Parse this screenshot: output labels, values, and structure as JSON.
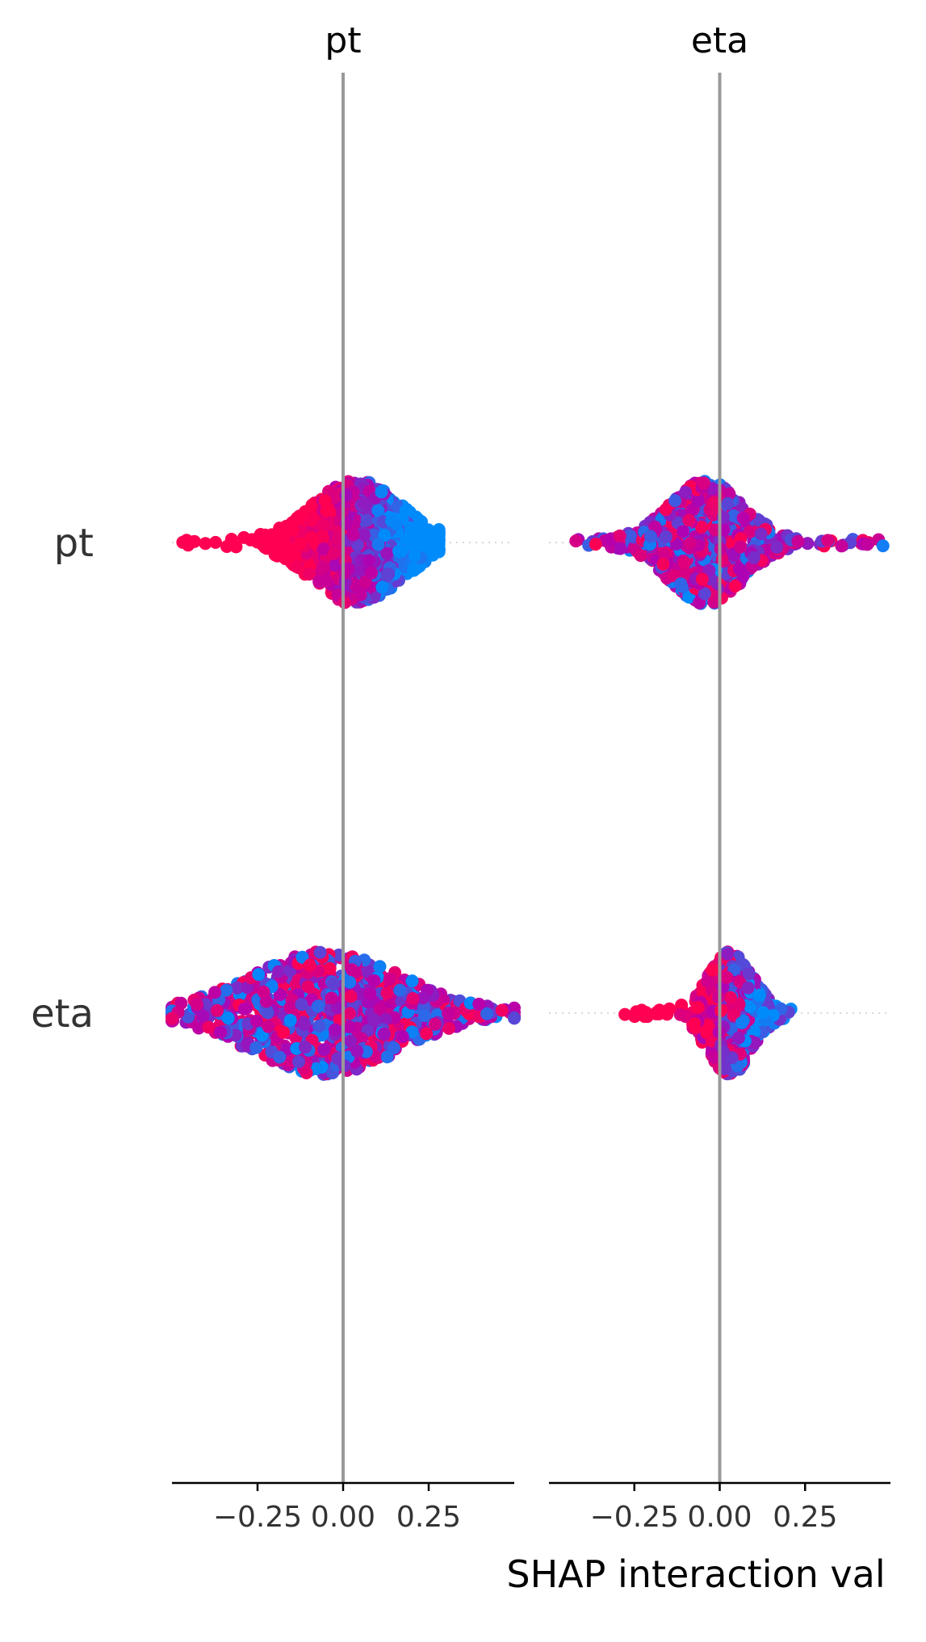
{
  "chart_data": {
    "type": "scatter",
    "subtype": "shap-interaction-beeswarm-matrix",
    "columns": [
      "pt",
      "eta"
    ],
    "rows": [
      "pt",
      "eta"
    ],
    "x_ticks": [
      -0.25,
      0.0,
      0.25
    ],
    "x_tick_labels": [
      "−0.25",
      "0.00",
      "0.25"
    ],
    "xlim": [
      -0.5,
      0.5
    ],
    "xlabel": "SHAP interaction val",
    "zero_line": true,
    "colors": {
      "high": "#ff0052",
      "mid": "#b200b2",
      "low": "#008bfb",
      "zero_line": "#999999",
      "axis": "#000000",
      "dotted": "#cccccc"
    },
    "panels": [
      {
        "row": "pt",
        "col": "pt",
        "x_min": -0.47,
        "x_max": 0.28,
        "center": 0.04,
        "spread_left": 0.11,
        "spread_right": 0.12,
        "peak_half_height": 0.34,
        "color_trend": "negative",
        "n_points": 900
      },
      {
        "row": "pt",
        "col": "eta",
        "x_min": -0.43,
        "x_max": 0.48,
        "center": -0.04,
        "spread_left": 0.1,
        "spread_right": 0.1,
        "peak_half_height": 0.34,
        "color_trend": "mixed",
        "n_points": 800
      },
      {
        "row": "eta",
        "col": "pt",
        "x_min": -0.5,
        "x_max": 0.5,
        "center": -0.05,
        "spread_left": 0.2,
        "spread_right": 0.2,
        "peak_half_height": 0.34,
        "color_trend": "mixed",
        "n_points": 900
      },
      {
        "row": "eta",
        "col": "eta",
        "x_min": -0.29,
        "x_max": 0.21,
        "center": 0.03,
        "spread_left": 0.05,
        "spread_right": 0.06,
        "peak_half_height": 0.34,
        "color_trend": "high-left",
        "n_points": 700
      }
    ]
  }
}
